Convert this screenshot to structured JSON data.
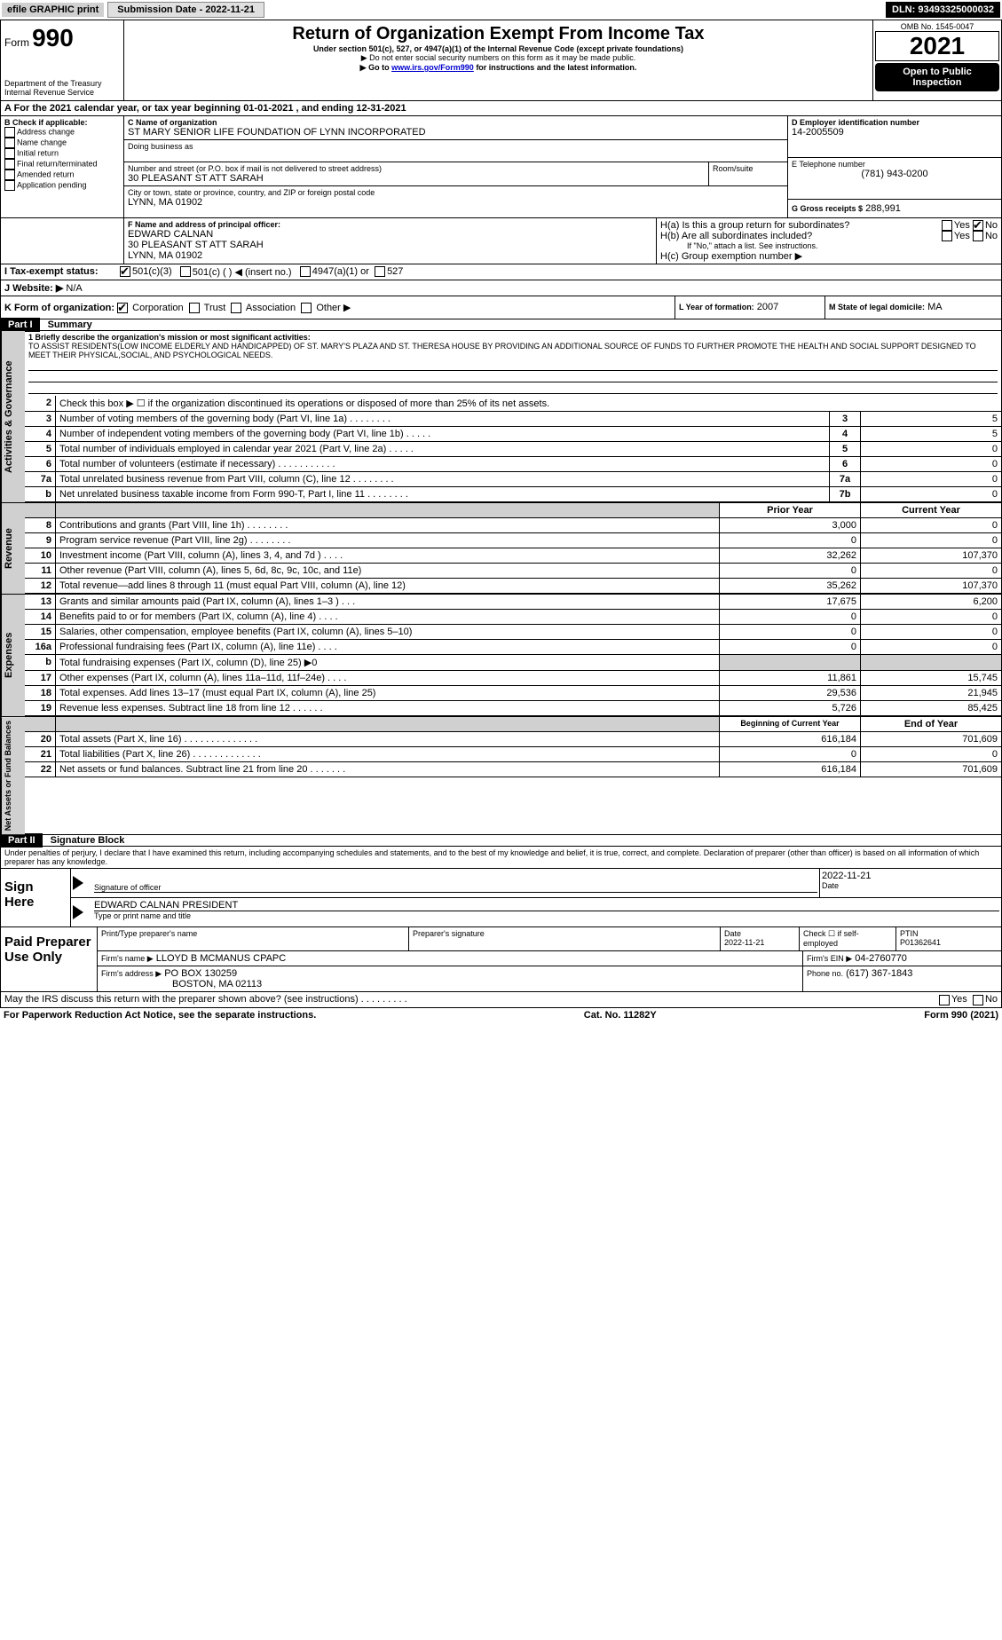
{
  "topbar": {
    "efile": "efile GRAPHIC print",
    "submission_label": "Submission Date - 2022-11-21",
    "dln": "DLN: 93493325000032"
  },
  "header": {
    "form_label_small": "Form",
    "form_number": "990",
    "title": "Return of Organization Exempt From Income Tax",
    "subtitle": "Under section 501(c), 527, or 4947(a)(1) of the Internal Revenue Code (except private foundations)",
    "warning": "▶ Do not enter social security numbers on this form as it may be made public.",
    "goto_prefix": "▶ Go to ",
    "goto_link": "www.irs.gov/Form990",
    "goto_suffix": " for instructions and the latest information.",
    "dept": "Department of the Treasury",
    "irs": "Internal Revenue Service",
    "omb": "OMB No. 1545-0047",
    "year": "2021",
    "open_public": "Open to Public Inspection"
  },
  "period": {
    "label": "A For the 2021 calendar year, or tax year beginning 01-01-2021     , and ending 12-31-2021"
  },
  "blockB": {
    "heading": "B Check if applicable:",
    "items": [
      "Address change",
      "Name change",
      "Initial return",
      "Final return/terminated",
      "Amended return",
      "Application pending"
    ]
  },
  "blockC": {
    "name_label": "C Name of organization",
    "name": "ST MARY SENIOR LIFE FOUNDATION OF LYNN INCORPORATED",
    "dba_label": "Doing business as",
    "street_label": "Number and street (or P.O. box if mail is not delivered to street address)",
    "room_label": "Room/suite",
    "street": "30 PLEASANT ST ATT SARAH",
    "city_label": "City or town, state or province, country, and ZIP or foreign postal code",
    "city": "LYNN, MA  01902"
  },
  "blockD": {
    "label": "D Employer identification number",
    "value": "14-2005509"
  },
  "blockE": {
    "label": "E Telephone number",
    "value": "(781) 943-0200"
  },
  "blockG": {
    "label": "G Gross receipts $",
    "value": "288,991"
  },
  "blockF": {
    "label": "F Name and address of principal officer:",
    "name": "EDWARD CALNAN",
    "street": "30 PLEASANT ST ATT SARAH",
    "city": "LYNN, MA  01902"
  },
  "blockH": {
    "a": "H(a)  Is this a group return for subordinates?",
    "b": "H(b)  Are all subordinates included?",
    "note": "If \"No,\" attach a list. See instructions.",
    "c": "H(c)  Group exemption number ▶",
    "yes": "Yes",
    "no": "No"
  },
  "blockI": {
    "label": "I     Tax-exempt status:",
    "o1": "501(c)(3)",
    "o2": "501(c) (  ) ◀ (insert no.)",
    "o3": "4947(a)(1) or",
    "o4": "527"
  },
  "blockJ": {
    "label": "J    Website: ▶",
    "value": "N/A"
  },
  "blockK": {
    "label": "K Form of organization:",
    "o1": "Corporation",
    "o2": "Trust",
    "o3": "Association",
    "o4": "Other ▶"
  },
  "blockL": {
    "label": "L Year of formation:",
    "value": "2007"
  },
  "blockM": {
    "label": "M State of legal domicile:",
    "value": "MA"
  },
  "part1": {
    "label": "Part I",
    "title": "Summary",
    "line1_label": "1  Briefly describe the organization's mission or most significant activities:",
    "line1_text": "TO ASSIST RESIDENTS(LOW INCOME ELDERLY AND HANDICAPPED) OF ST. MARY'S PLAZA AND ST. THERESA HOUSE BY PROVIDING AN ADDITIONAL SOURCE OF FUNDS TO FURTHER PROMOTE THE HEALTH AND SOCIAL SUPPORT DESIGNED TO MEET THEIR PHYSICAL,SOCIAL, AND PSYCHOLOGICAL NEEDS."
  },
  "governance": {
    "side": "Activities & Governance",
    "rows": [
      {
        "n": "2",
        "desc": "Check this box ▶ ☐ if the organization discontinued its operations or disposed of more than 25% of its net assets.",
        "box": "",
        "val": ""
      },
      {
        "n": "3",
        "desc": "Number of voting members of the governing body (Part VI, line 1a)   .    .    .    .    .    .    .    .",
        "box": "3",
        "val": "5"
      },
      {
        "n": "4",
        "desc": "Number of independent voting members of the governing body (Part VI, line 1b)   .    .    .    .    .",
        "box": "4",
        "val": "5"
      },
      {
        "n": "5",
        "desc": "Total number of individuals employed in calendar year 2021 (Part V, line 2a)   .    .    .    .    .",
        "box": "5",
        "val": "0"
      },
      {
        "n": "6",
        "desc": "Total number of volunteers (estimate if necessary)    .    .    .    .    .    .    .    .    .    .    .",
        "box": "6",
        "val": "0"
      },
      {
        "n": "7a",
        "desc": "Total unrelated business revenue from Part VIII, column (C), line 12  .    .    .    .    .    .    .    .",
        "box": "7a",
        "val": "0"
      },
      {
        "n": "b",
        "desc": "Net unrelated business taxable income from Form 990-T, Part I, line 11 .    .    .    .    .    .    .    .",
        "box": "7b",
        "val": "0"
      }
    ]
  },
  "twocol_header": {
    "prior": "Prior Year",
    "current": "Current Year"
  },
  "revenue": {
    "side": "Revenue",
    "rows": [
      {
        "n": "8",
        "desc": "Contributions and grants (Part VIII, line 1h)  .    .    .    .    .    .    .    .",
        "p": "3,000",
        "c": "0"
      },
      {
        "n": "9",
        "desc": "Program service revenue (Part VIII, line 2g)   .    .    .    .    .    .    .    .",
        "p": "0",
        "c": "0"
      },
      {
        "n": "10",
        "desc": "Investment income (Part VIII, column (A), lines 3, 4, and 7d )  .    .    .    .",
        "p": "32,262",
        "c": "107,370"
      },
      {
        "n": "11",
        "desc": "Other revenue (Part VIII, column (A), lines 5, 6d, 8c, 9c, 10c, and 11e)",
        "p": "0",
        "c": "0"
      },
      {
        "n": "12",
        "desc": "Total revenue—add lines 8 through 11 (must equal Part VIII, column (A), line 12)",
        "p": "35,262",
        "c": "107,370"
      }
    ]
  },
  "expenses": {
    "side": "Expenses",
    "rows": [
      {
        "n": "13",
        "desc": "Grants and similar amounts paid (Part IX, column (A), lines 1–3 )  .    .    .",
        "p": "17,675",
        "c": "6,200"
      },
      {
        "n": "14",
        "desc": "Benefits paid to or for members (Part IX, column (A), line 4)  .    .    .    .",
        "p": "0",
        "c": "0"
      },
      {
        "n": "15",
        "desc": "Salaries, other compensation, employee benefits (Part IX, column (A), lines 5–10)",
        "p": "0",
        "c": "0"
      },
      {
        "n": "16a",
        "desc": "Professional fundraising fees (Part IX, column (A), line 11e)  .    .    .    .",
        "p": "0",
        "c": "0"
      },
      {
        "n": "b",
        "desc": "Total fundraising expenses (Part IX, column (D), line 25) ▶0",
        "p": "",
        "c": "",
        "shade": true
      },
      {
        "n": "17",
        "desc": "Other expenses (Part IX, column (A), lines 11a–11d, 11f–24e)  .    .    .    .",
        "p": "11,861",
        "c": "15,745"
      },
      {
        "n": "18",
        "desc": "Total expenses. Add lines 13–17 (must equal Part IX, column (A), line 25)",
        "p": "29,536",
        "c": "21,945"
      },
      {
        "n": "19",
        "desc": "Revenue less expenses. Subtract line 18 from line 12  .    .    .    .    .    .",
        "p": "5,726",
        "c": "85,425"
      }
    ]
  },
  "netassets_header": {
    "beg": "Beginning of Current Year",
    "end": "End of Year"
  },
  "netassets": {
    "side": "Net Assets or Fund Balances",
    "rows": [
      {
        "n": "20",
        "desc": "Total assets (Part X, line 16)  .    .    .    .    .    .    .    .    .    .    .    .    .    .",
        "p": "616,184",
        "c": "701,609"
      },
      {
        "n": "21",
        "desc": "Total liabilities (Part X, line 26)  .    .    .    .    .    .    .    .    .    .    .    .    .",
        "p": "0",
        "c": "0"
      },
      {
        "n": "22",
        "desc": "Net assets or fund balances. Subtract line 21 from line 20   .    .    .    .    .    .    .",
        "p": "616,184",
        "c": "701,609"
      }
    ]
  },
  "part2": {
    "label": "Part II",
    "title": "Signature Block",
    "jurat": "Under penalties of perjury, I declare that I have examined this return, including accompanying schedules and statements, and to the best of my knowledge and belief, it is true, correct, and complete. Declaration of preparer (other than officer) is based on all information of which preparer has any knowledge."
  },
  "sign": {
    "here": "Sign Here",
    "sig_label": "Signature of officer",
    "date": "2022-11-21",
    "date_label": "Date",
    "name": "EDWARD CALNAN  PRESIDENT",
    "name_label": "Type or print name and title"
  },
  "paid": {
    "label": "Paid Preparer Use Only",
    "h1": "Print/Type preparer's name",
    "h2": "Preparer's signature",
    "h3": "Date",
    "h3v": "2022-11-21",
    "h4": "Check ☐ if self-employed",
    "h5": "PTIN",
    "h5v": "P01362641",
    "firm_name_l": "Firm's name     ▶",
    "firm_name": "LLOYD B MCMANUS CPAPC",
    "firm_ein_l": "Firm's EIN ▶",
    "firm_ein": "04-2760770",
    "firm_addr_l": "Firm's address ▶",
    "firm_addr1": "PO BOX 130259",
    "firm_addr2": "BOSTON, MA  02113",
    "phone_l": "Phone no.",
    "phone": "(617) 367-1843"
  },
  "discuss": {
    "q": "May the IRS discuss this return with the preparer shown above? (see instructions)   .    .    .    .    .    .    .    .    .",
    "yes": "Yes",
    "no": "No"
  },
  "footer": {
    "pra": "For Paperwork Reduction Act Notice, see the separate instructions.",
    "cat": "Cat. No. 11282Y",
    "form": "Form 990 (2021)"
  }
}
